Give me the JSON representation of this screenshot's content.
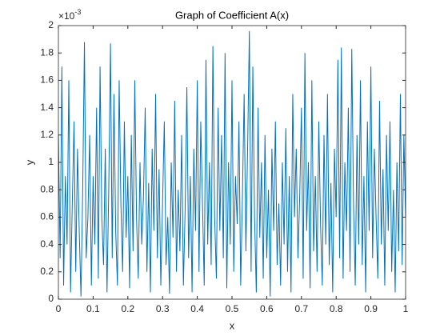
{
  "chart_data": {
    "type": "line",
    "title": "Graph of Coefficient A(x)",
    "x_label": "x",
    "y_label": "y",
    "y_exponent": {
      "base": "×10",
      "exponent": "-3"
    },
    "xlim": [
      0,
      1
    ],
    "ylim": [
      0,
      2
    ],
    "xticks": [
      0,
      0.1,
      0.2,
      0.3,
      0.4,
      0.5,
      0.6,
      0.7,
      0.8,
      0.9,
      1
    ],
    "yticks": [
      0,
      0.2,
      0.4,
      0.6,
      0.8,
      1,
      1.2,
      1.4,
      1.6,
      1.8,
      2
    ],
    "grid": false,
    "x": [
      0,
      0.005,
      0.01,
      0.015,
      0.02,
      0.025,
      0.03,
      0.035,
      0.04,
      0.045,
      0.05,
      0.055,
      0.06,
      0.065,
      0.07,
      0.075,
      0.08,
      0.085,
      0.09,
      0.095,
      0.1,
      0.105,
      0.11,
      0.115,
      0.12,
      0.125,
      0.13,
      0.135,
      0.14,
      0.145,
      0.15,
      0.155,
      0.16,
      0.165,
      0.17,
      0.175,
      0.18,
      0.185,
      0.19,
      0.195,
      0.2,
      0.205,
      0.21,
      0.215,
      0.22,
      0.225,
      0.23,
      0.235,
      0.24,
      0.245,
      0.25,
      0.255,
      0.26,
      0.265,
      0.27,
      0.275,
      0.28,
      0.285,
      0.29,
      0.295,
      0.3,
      0.305,
      0.31,
      0.315,
      0.32,
      0.325,
      0.33,
      0.335,
      0.34,
      0.345,
      0.35,
      0.355,
      0.36,
      0.365,
      0.37,
      0.375,
      0.38,
      0.385,
      0.39,
      0.395,
      0.4,
      0.405,
      0.41,
      0.415,
      0.42,
      0.425,
      0.43,
      0.435,
      0.44,
      0.445,
      0.45,
      0.455,
      0.46,
      0.465,
      0.47,
      0.475,
      0.48,
      0.485,
      0.49,
      0.495,
      0.5,
      0.505,
      0.51,
      0.515,
      0.52,
      0.525,
      0.53,
      0.535,
      0.54,
      0.545,
      0.55,
      0.555,
      0.56,
      0.565,
      0.57,
      0.575,
      0.58,
      0.585,
      0.59,
      0.595,
      0.6,
      0.605,
      0.61,
      0.615,
      0.62,
      0.625,
      0.63,
      0.635,
      0.64,
      0.645,
      0.65,
      0.655,
      0.66,
      0.665,
      0.67,
      0.675,
      0.68,
      0.685,
      0.69,
      0.695,
      0.7,
      0.705,
      0.71,
      0.715,
      0.72,
      0.725,
      0.73,
      0.735,
      0.74,
      0.745,
      0.75,
      0.755,
      0.76,
      0.765,
      0.77,
      0.775,
      0.78,
      0.785,
      0.79,
      0.795,
      0.8,
      0.805,
      0.81,
      0.815,
      0.82,
      0.825,
      0.83,
      0.835,
      0.84,
      0.845,
      0.85,
      0.855,
      0.86,
      0.865,
      0.87,
      0.875,
      0.88,
      0.885,
      0.89,
      0.895,
      0.9,
      0.905,
      0.91,
      0.915,
      0.92,
      0.925,
      0.93,
      0.935,
      0.94,
      0.945,
      0.95,
      0.955,
      0.96,
      0.965,
      0.97,
      0.975,
      0.98,
      0.985,
      0.99,
      0.995,
      1
    ],
    "series": [
      {
        "color": "#0072BD",
        "values": [
          1.2,
          0.3,
          1.7,
          0.1,
          0.9,
          0.4,
          1.6,
          0.05,
          0.7,
          1.3,
          0.2,
          1.1,
          0.5,
          0.02,
          0.8,
          1.88,
          0.3,
          0.6,
          1.2,
          0.1,
          0.9,
          0.4,
          1.4,
          0.15,
          1.7,
          0.6,
          0.25,
          1.1,
          0.05,
          0.8,
          1.87,
          0.3,
          1.5,
          0.5,
          0.1,
          1.6,
          0.7,
          0.2,
          1.3,
          0.45,
          0.9,
          0.08,
          1.2,
          0.35,
          1.6,
          0.6,
          0.15,
          1.0,
          0.4,
          0.75,
          1.4,
          0.2,
          0.85,
          0.05,
          1.1,
          0.5,
          1.5,
          0.3,
          0.95,
          0.1,
          0.7,
          1.3,
          0.25,
          0.6,
          0.04,
          1.0,
          0.45,
          1.45,
          0.2,
          0.8,
          0.35,
          1.2,
          0.1,
          0.65,
          1.55,
          0.3,
          0.9,
          0.05,
          1.1,
          0.5,
          1.6,
          0.2,
          1.3,
          0.7,
          0.1,
          1.75,
          0.4,
          1.0,
          0.25,
          1.85,
          0.6,
          0.15,
          1.4,
          0.5,
          1.2,
          0.3,
          1.8,
          0.08,
          1.0,
          0.4,
          1.6,
          0.2,
          0.9,
          0.55,
          1.3,
          0.1,
          0.75,
          1.5,
          0.35,
          1.1,
          1.96,
          0.2,
          1.7,
          0.6,
          0.05,
          1.4,
          0.45,
          1.0,
          0.15,
          1.2,
          0.3,
          0.8,
          0.02,
          1.1,
          0.5,
          1.3,
          0.25,
          0.7,
          0.1,
          1.0,
          0.4,
          1.25,
          0.2,
          0.9,
          0.05,
          1.5,
          0.6,
          1.1,
          0.3,
          0.75,
          1.4,
          0.15,
          1.8,
          0.5,
          1.0,
          0.08,
          1.6,
          0.35,
          0.9,
          0.2,
          1.3,
          0.55,
          0.1,
          1.2,
          0.4,
          1.5,
          0.25,
          0.85,
          0.05,
          1.1,
          0.6,
          1.75,
          0.3,
          1.84,
          0.15,
          1.0,
          0.5,
          1.4,
          0.2,
          1.83,
          0.7,
          0.1,
          1.2,
          0.4,
          1.6,
          0.25,
          0.9,
          0.05,
          1.3,
          0.5,
          1.7,
          0.3,
          1.1,
          0.6,
          0.15,
          1.45,
          0.4,
          0.95,
          0.1,
          1.2,
          0.5,
          1.3,
          0.2,
          0.8,
          0.05,
          1.0,
          0.35,
          1.5,
          0.25,
          1.2,
          0.6
        ]
      }
    ]
  }
}
